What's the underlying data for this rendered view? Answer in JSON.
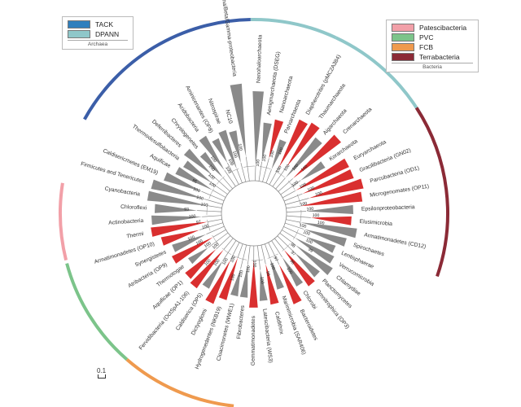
{
  "legend_archaea": {
    "title": "Archaea",
    "items": [
      {
        "label": "TACK",
        "color": "#2f7fbd"
      },
      {
        "label": "DPANN",
        "color": "#8fc7c9"
      }
    ]
  },
  "legend_bacteria": {
    "title": "Bacteria",
    "items": [
      {
        "label": "Patescibacteria",
        "color": "#f2a0a8"
      },
      {
        "label": "PVC",
        "color": "#7cc48a"
      },
      {
        "label": "FCB",
        "color": "#ef9a4e"
      },
      {
        "label": "Terrabacteria",
        "color": "#8b2a36"
      }
    ]
  },
  "scale_label": "0.1",
  "colors": {
    "red": "#d92f2f",
    "gray": "#8a8a8a",
    "branch": "#888888",
    "arc_tack": "#3b5ea8",
    "arc_dpann": "#8fc7c9",
    "arc_patesci": "#f2a0a8",
    "arc_pvc": "#7cc48a",
    "arc_fcb": "#ef9a4e",
    "arc_terra": "#8b2a36"
  },
  "taxa": [
    {
      "label": "Nanohaloarchaeota",
      "color": "gray"
    },
    {
      "label": "Aenigmarchaeota (DSEG)",
      "color": "gray"
    },
    {
      "label": "Nanoarchaeota",
      "color": "red"
    },
    {
      "label": "Parvarchaeota",
      "color": "gray"
    },
    {
      "label": "Diapherotrites (pMC2A384)",
      "color": "red"
    },
    {
      "label": "Thaumarchaeota",
      "color": "red"
    },
    {
      "label": "Aigarchaeota",
      "color": "gray"
    },
    {
      "label": "Crenarchaeota",
      "color": "red"
    },
    {
      "label": "Korarchaeota",
      "color": "gray"
    },
    {
      "label": "Euryarchaeota",
      "color": "red"
    },
    {
      "label": "Gracilibacteria (GN02)",
      "color": "red"
    },
    {
      "label": "Parcubacteria (OD1)",
      "color": "red"
    },
    {
      "label": "Microgenomates (OP11)",
      "color": "red"
    },
    {
      "label": "Epsilonproteobacteria",
      "color": "gray"
    },
    {
      "label": "Elusimicrobia",
      "color": "red"
    },
    {
      "label": "Armatimonadetes (CD12)",
      "color": "gray"
    },
    {
      "label": "Spirochaetes",
      "color": "gray"
    },
    {
      "label": "Lentisphaerae",
      "color": "gray"
    },
    {
      "label": "Verrucomicrobia",
      "color": "gray"
    },
    {
      "label": "Chlamydiae",
      "color": "gray"
    },
    {
      "label": "Planctomycetes",
      "color": "gray"
    },
    {
      "label": "Omnitrophica (OP3)",
      "color": "red"
    },
    {
      "label": "Chlorobi",
      "color": "gray"
    },
    {
      "label": "Bacteroidetes",
      "color": "red"
    },
    {
      "label": "Marinimicrobia (SAR406)",
      "color": "gray"
    },
    {
      "label": "Caldithrix",
      "color": "red"
    },
    {
      "label": "Latescibacteria (WS3)",
      "color": "gray"
    },
    {
      "label": "Gemmatimonadetes",
      "color": "red"
    },
    {
      "label": "Fibrobacteres",
      "color": "gray"
    },
    {
      "label": "Cloacimonetes (WWE1)",
      "color": "gray"
    },
    {
      "label": "Hydrogenedentes (NKB19)",
      "color": "red"
    },
    {
      "label": "Dictyoglomi",
      "color": "red"
    },
    {
      "label": "Caldiserica (OP5)",
      "color": "gray"
    },
    {
      "label": "Fervidibacteria (OctSpA1-106)",
      "color": "red"
    },
    {
      "label": "Aquificae (OP1)",
      "color": "red"
    },
    {
      "label": "Thermotogae",
      "color": "gray"
    },
    {
      "label": "Atribacteria (OP9)",
      "color": "red"
    },
    {
      "label": "Synergistetes",
      "color": "gray"
    },
    {
      "label": "Armatimonadetes (OP10)",
      "color": "red"
    },
    {
      "label": "Thermi",
      "color": "red"
    },
    {
      "label": "Actinobacteria",
      "color": "gray"
    },
    {
      "label": "Chloroflexi",
      "color": "gray"
    },
    {
      "label": "Cyanobacteria",
      "color": "gray"
    },
    {
      "label": "Firmicutes and Tenericutes",
      "color": "gray"
    },
    {
      "label": "Caldisericmetes (EM19)",
      "color": "gray"
    },
    {
      "label": "Aquificae",
      "color": "gray"
    },
    {
      "label": "Thermodesulfobacteria",
      "color": "gray"
    },
    {
      "label": "Deferribacteres",
      "color": "gray"
    },
    {
      "label": "Chrysiogenetes",
      "color": "gray"
    },
    {
      "label": "Acidobacteria",
      "color": "gray"
    },
    {
      "label": "Aminicenantes (OP8)",
      "color": "gray"
    },
    {
      "label": "Nitrospirae",
      "color": "gray"
    },
    {
      "label": "NC10",
      "color": "gray"
    },
    {
      "label": "Alpha/Beta/Gamma-proteobacteria",
      "color": "gray"
    }
  ],
  "bootstrap_labels": [
    "100",
    "100",
    "100",
    "100",
    "100",
    "100",
    "100",
    "100",
    "100",
    "100",
    "100",
    "100",
    "100",
    "100",
    "100",
    "100",
    "100",
    "100",
    "100",
    "99",
    "98",
    "97",
    "96",
    "100",
    "97",
    "100",
    "99",
    "100",
    "100",
    "100",
    "100",
    "100",
    "100",
    "100",
    "100",
    "100",
    "100",
    "100",
    "100",
    "100",
    "100",
    "97",
    "100",
    "93",
    "100",
    "100",
    "100",
    "95",
    "100",
    "100",
    "100",
    "100",
    "100",
    "100",
    "100",
    "100"
  ]
}
